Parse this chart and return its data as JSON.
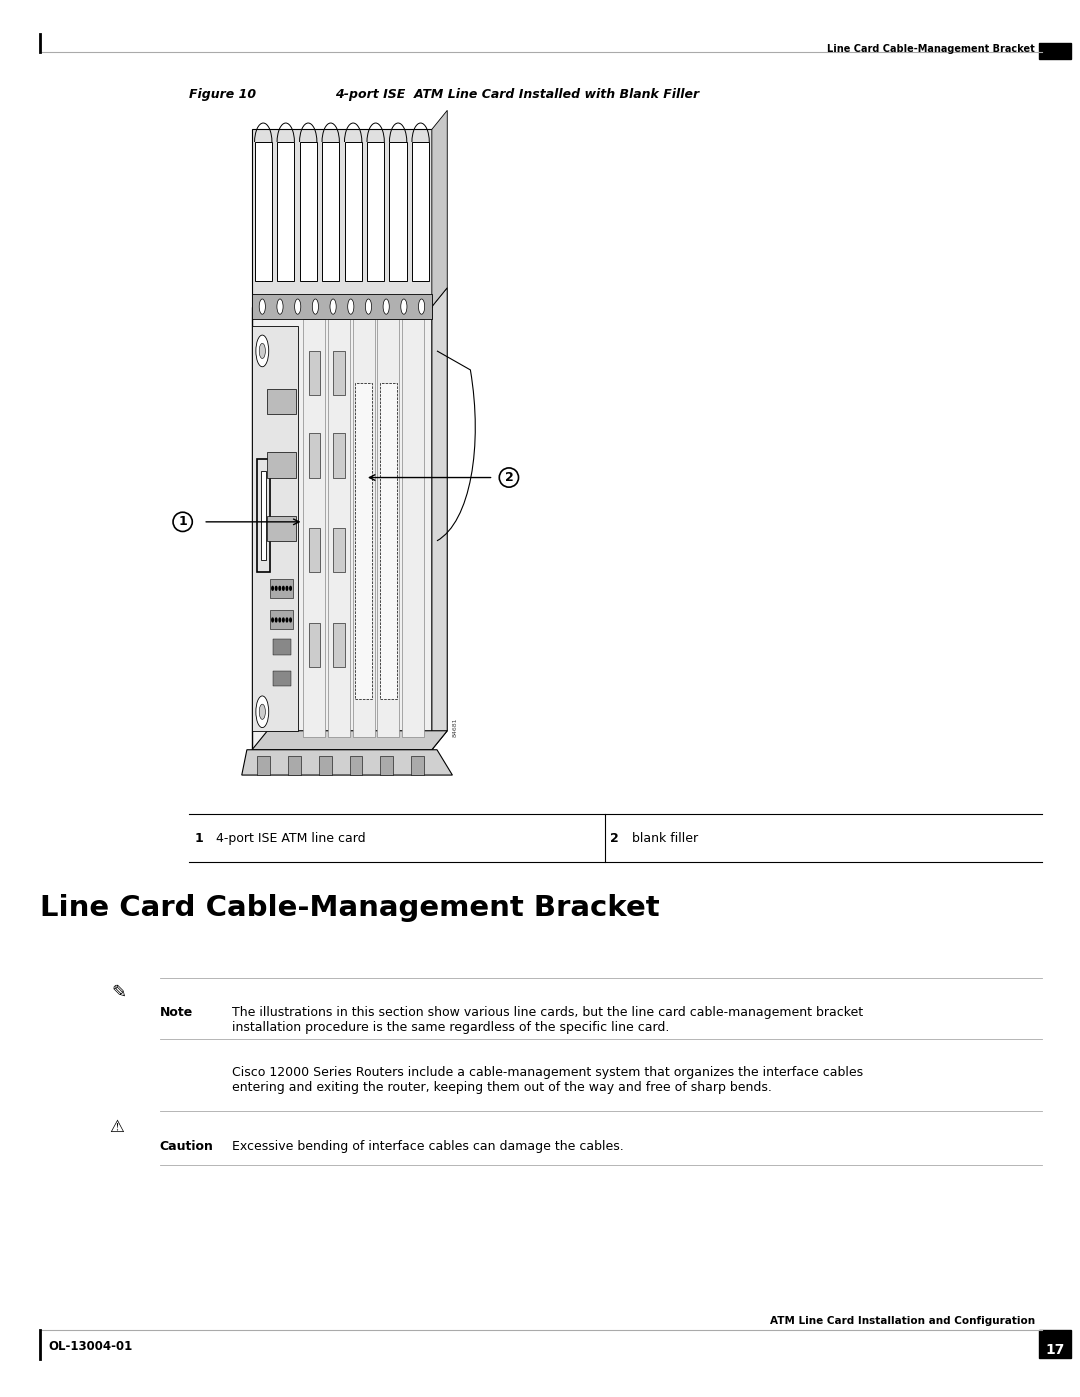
{
  "page_width": 10.8,
  "page_height": 13.97,
  "bg_color": "#ffffff",
  "header_text_right": "Line Card Cable-Management Bracket",
  "footer_left": "OL-13004-01",
  "footer_right_text": "ATM Line Card Installation and Configuration",
  "footer_page_num": "17",
  "figure_caption_num": "Figure 10",
  "figure_caption_title": "4-port ISE  ATM Line Card Installed with Blank Filler",
  "label1_num": "1",
  "label1_text": "4-port ISE ATM line card",
  "label2_num": "2",
  "label2_text": "blank filler",
  "section_title": "Line Card Cable-Management Bracket",
  "note_label": "Note",
  "note_text": "The illustrations in this section show various line cards, but the line card cable-management bracket\ninstallation procedure is the same regardless of the specific line card.",
  "body_text": "Cisco 12000 Series Routers include a cable-management system that organizes the interface cables\nentering and exiting the router, keeping them out of the way and free of sharp bends.",
  "caution_label": "Caution",
  "caution_text": "Excessive bending of interface cables can damage the cables."
}
